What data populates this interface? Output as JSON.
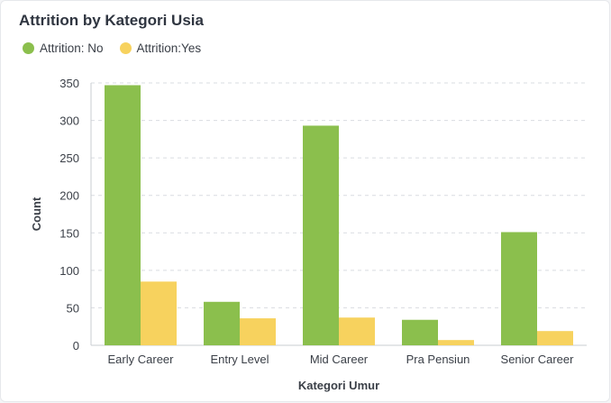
{
  "chart_data": {
    "type": "bar",
    "title": "Attrition by Kategori Usia",
    "xlabel": "Kategori Umur",
    "ylabel": "Count",
    "ylim": [
      0,
      350
    ],
    "yticks": [
      0,
      50,
      100,
      150,
      200,
      250,
      300,
      350
    ],
    "grid": true,
    "legend_position": "top-left",
    "categories": [
      "Early Career",
      "Entry Level",
      "Mid Career",
      "Pra Pensiun",
      "Senior Career"
    ],
    "series": [
      {
        "name": "Attrition: No",
        "color": "#8bbf4d",
        "values": [
          347,
          58,
          293,
          34,
          151
        ]
      },
      {
        "name": "Attrition:Yes",
        "color": "#f7d25e",
        "values": [
          85,
          36,
          37,
          7,
          19
        ]
      }
    ]
  }
}
